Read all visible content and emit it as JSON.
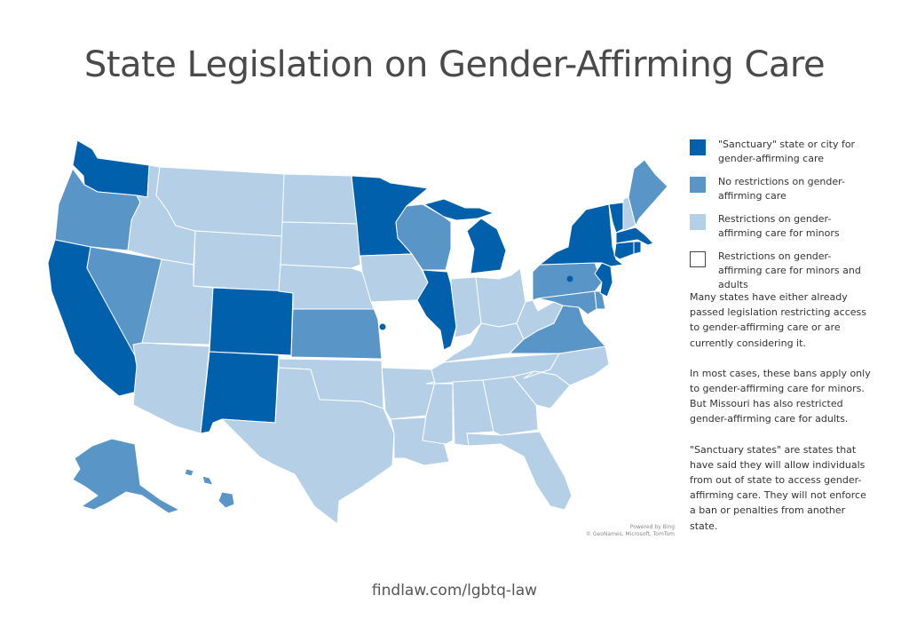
{
  "title": "State Legislation on Gender-Affirming Care",
  "legend": [
    {
      "label": "\"Sanctuary\" state or city for gender-affirming care",
      "color": "#0060ac"
    },
    {
      "label": "No restrictions on gender-affirming care",
      "color": "#5a95c8"
    },
    {
      "label": "Restrictions on gender-affirming care for minors",
      "color": "#b4cfe6"
    },
    {
      "label": "Restrictions on gender-affirming care for minors and adults",
      "color": "#ffffff"
    }
  ],
  "notes": [
    "Many states have either already passed legislation restricting access to gender-affirming care or are currently considering it.",
    "In most cases, these bans apply only to gender-affirming care for minors. But Missouri has also restricted gender-affirming care for adults.",
    "\"Sanctuary states\" are states that have said they will allow individuals from out of state to access gender-affirming care. They will not enforce a ban or penalties from another state."
  ],
  "map_credit": {
    "line1": "Powered by Bing",
    "line2": "© GeoNames, Microsoft, TomTom"
  },
  "footer": "findlaw.com/lgbtq-law",
  "states": {
    "sanctuary": [
      "WA",
      "CA",
      "CO",
      "NM",
      "MN",
      "IL",
      "MI",
      "NY",
      "VT",
      "MA",
      "CT",
      "NJ",
      "RI"
    ],
    "no_restrictions": [
      "OR",
      "NV",
      "KS",
      "WI",
      "PA",
      "VA",
      "MD",
      "DE",
      "ME",
      "AK",
      "HI"
    ],
    "restrictions_minors": [
      "ID",
      "MT",
      "WY",
      "UT",
      "AZ",
      "ND",
      "SD",
      "NE",
      "OK",
      "TX",
      "IA",
      "AR",
      "LA",
      "MS",
      "AL",
      "TN",
      "KY",
      "IN",
      "OH",
      "WV",
      "NC",
      "SC",
      "GA",
      "FL",
      "NH"
    ],
    "restrictions_minors_and_adults": [
      "MO"
    ]
  },
  "sanctuary_cities": [
    "Kansas City, MO",
    "Philadelphia, PA"
  ]
}
